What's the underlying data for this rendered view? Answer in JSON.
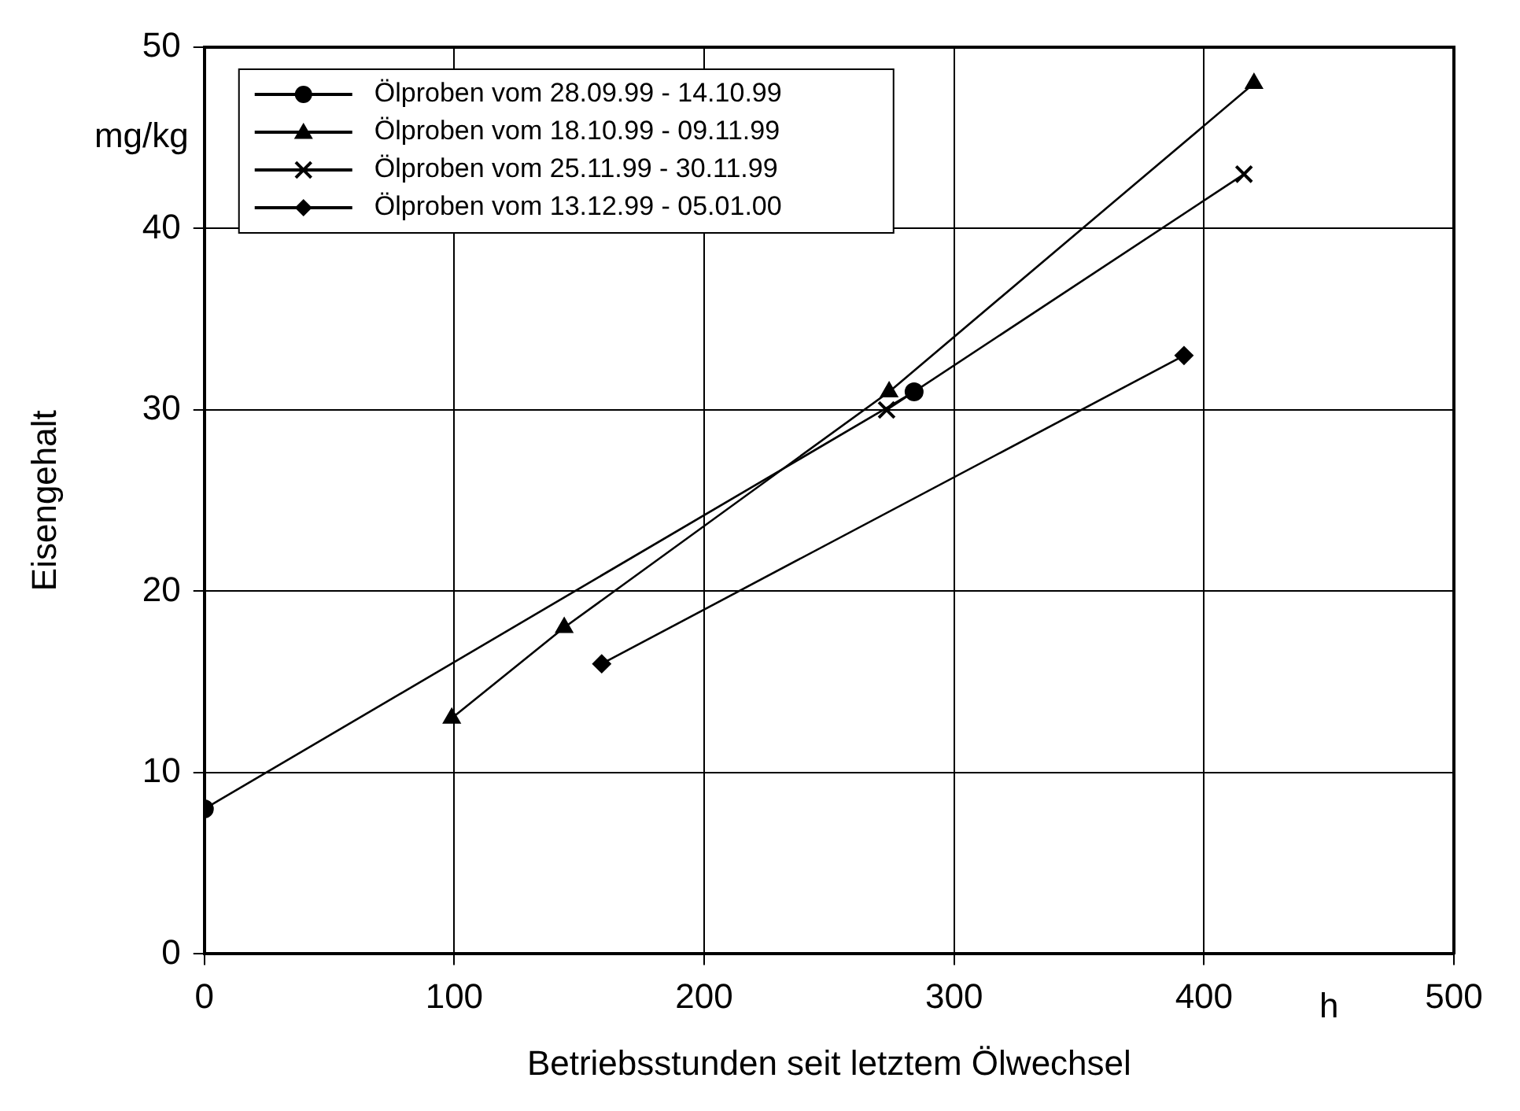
{
  "chart_data": {
    "type": "line",
    "xlabel": "Betriebsstunden seit letztem Ölwechsel",
    "ylabel": "Eisengehalt",
    "annotations": [
      "mg/kg",
      "h"
    ],
    "series": [
      {
        "name": "Ölproben vom 28.09.99 - 14.10.99",
        "color": "#000000",
        "marker": "circle",
        "x": [
          0,
          284
        ],
        "values": [
          8,
          31
        ]
      },
      {
        "name": "Ölproben vom 18.10.99 - 09.11.99",
        "color": "#000000",
        "marker": "triangle",
        "x": [
          99,
          144,
          274,
          420
        ],
        "values": [
          13,
          18,
          31,
          48
        ]
      },
      {
        "name": "Ölproben vom 25.11.99 - 30.11.99",
        "color": "#000000",
        "marker": "cross",
        "x": [
          273,
          416
        ],
        "values": [
          30,
          43
        ]
      },
      {
        "name": "Ölproben vom 13.12.99 - 05.01.00",
        "color": "#000000",
        "marker": "diamond",
        "x": [
          159,
          392
        ],
        "values": [
          16,
          33
        ]
      }
    ],
    "xlim": [
      0,
      500
    ],
    "xticks": [
      0,
      100,
      200,
      300,
      400,
      500
    ],
    "ylim": [
      0,
      50
    ],
    "yticks": [
      0,
      10,
      20,
      30,
      40,
      50
    ],
    "grid": true,
    "legend": "top left",
    "line_style": "solid"
  }
}
